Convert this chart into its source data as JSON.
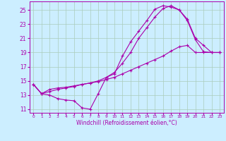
{
  "xlabel": "Windchill (Refroidissement éolien,°C)",
  "ylabel": "",
  "bg_color": "#cceeff",
  "grid_color": "#aaccbb",
  "line_color": "#aa00aa",
  "xlim": [
    -0.5,
    23.5
  ],
  "ylim": [
    10.5,
    26.2
  ],
  "xticks": [
    0,
    1,
    2,
    3,
    4,
    5,
    6,
    7,
    8,
    9,
    10,
    11,
    12,
    13,
    14,
    15,
    16,
    17,
    18,
    19,
    20,
    21,
    22,
    23
  ],
  "yticks": [
    11,
    13,
    15,
    17,
    19,
    21,
    23,
    25
  ],
  "series": [
    {
      "x": [
        0,
        1,
        2,
        3,
        4,
        5,
        6,
        7,
        8,
        9,
        10,
        11,
        12,
        13,
        14,
        15,
        16,
        17,
        18,
        19,
        20,
        21,
        22,
        23
      ],
      "y": [
        14.5,
        13.2,
        13.0,
        12.5,
        12.3,
        12.2,
        11.2,
        11.0,
        13.2,
        15.5,
        16.0,
        18.5,
        20.5,
        22.0,
        23.5,
        25.1,
        25.6,
        25.4,
        25.0,
        23.5,
        20.8,
        19.1,
        19.0,
        19.0
      ]
    },
    {
      "x": [
        0,
        1,
        2,
        3,
        4,
        5,
        6,
        7,
        8,
        9,
        10,
        11,
        12,
        13,
        14,
        15,
        16,
        17,
        18,
        19,
        20,
        21,
        22,
        23
      ],
      "y": [
        14.5,
        13.2,
        13.8,
        14.0,
        14.1,
        14.3,
        14.5,
        14.7,
        14.9,
        15.2,
        15.5,
        16.0,
        16.5,
        17.0,
        17.5,
        18.0,
        18.5,
        19.2,
        19.8,
        20.0,
        19.0,
        19.0,
        19.0,
        19.0
      ]
    },
    {
      "x": [
        0,
        1,
        2,
        3,
        4,
        5,
        6,
        7,
        8,
        9,
        10,
        11,
        12,
        13,
        14,
        15,
        16,
        17,
        18,
        19,
        20,
        21,
        22,
        23
      ],
      "y": [
        14.5,
        13.2,
        13.5,
        13.8,
        14.0,
        14.2,
        14.5,
        14.7,
        15.0,
        15.5,
        16.2,
        17.5,
        19.0,
        21.0,
        22.5,
        24.0,
        25.2,
        25.6,
        25.0,
        23.7,
        21.0,
        20.0,
        19.0,
        19.0
      ]
    }
  ]
}
